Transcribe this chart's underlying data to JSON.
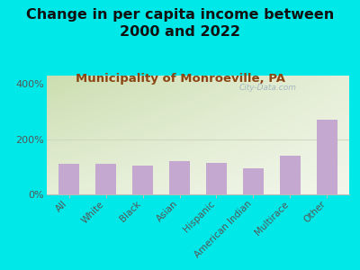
{
  "title": "Change in per capita income between\n2000 and 2022",
  "subtitle": "Municipality of Monroeville, PA",
  "categories": [
    "All",
    "White",
    "Black",
    "Asian",
    "Hispanic",
    "American Indian",
    "Multirace",
    "Other"
  ],
  "values": [
    110,
    112,
    105,
    120,
    113,
    93,
    140,
    270
  ],
  "bar_color": "#c4a8d0",
  "background_outer": "#00e8e8",
  "plot_bg_left_top": "#ccddb0",
  "plot_bg_right_bottom": "#f0f8e8",
  "ylabel_ticks": [
    "0%",
    "200%",
    "400%"
  ],
  "yticks": [
    0,
    200,
    400
  ],
  "ylim": [
    0,
    430
  ],
  "title_fontsize": 11.5,
  "subtitle_fontsize": 9.5,
  "subtitle_color": "#8B4513",
  "tick_label_color": "#555555",
  "watermark": "City-Data.com",
  "watermark_color": "#9aafbf",
  "hline_color": "#d0d8c0",
  "spine_color": "#bbbbbb"
}
